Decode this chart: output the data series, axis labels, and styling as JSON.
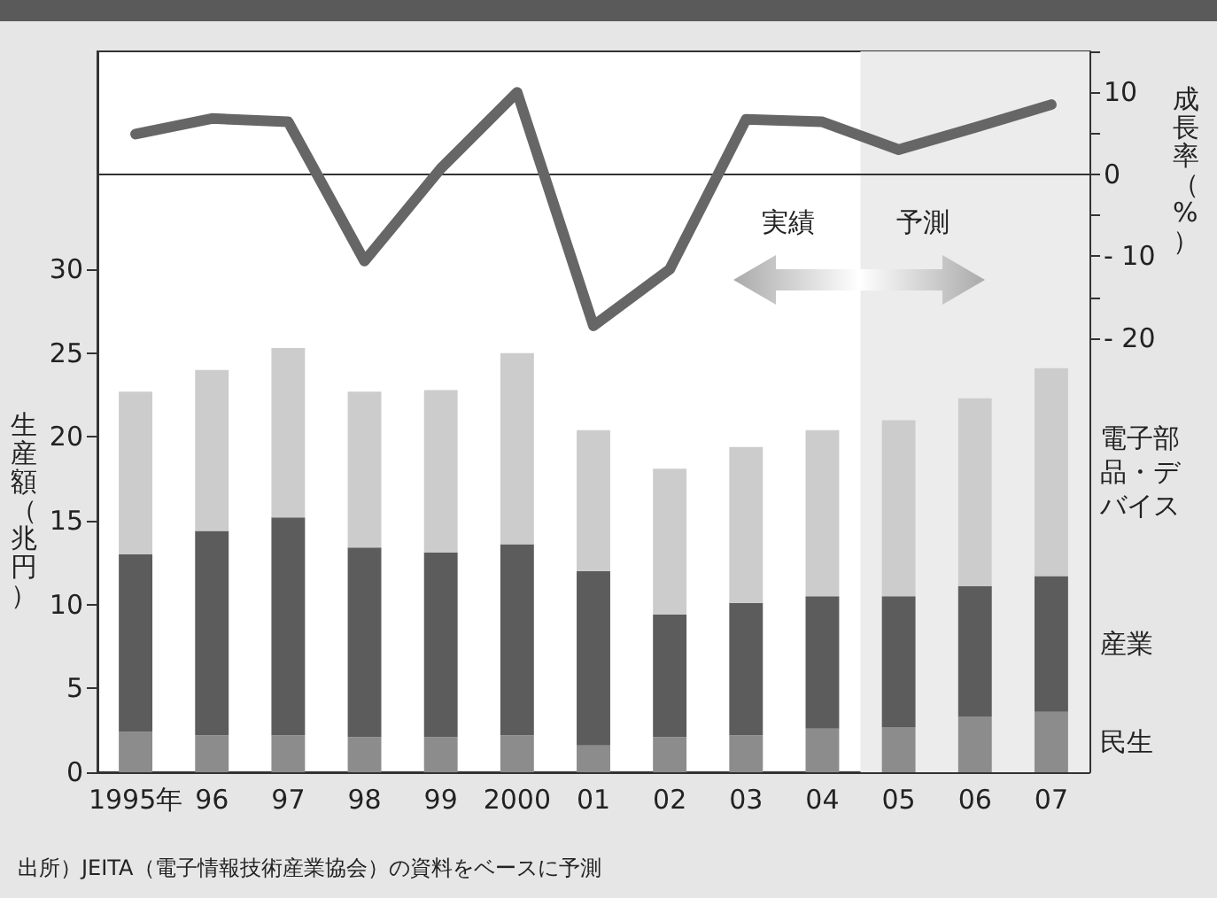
{
  "chart_data": {
    "type": "bar",
    "stacked": true,
    "categories": [
      "1995年",
      "96",
      "97",
      "98",
      "99",
      "2000",
      "01",
      "02",
      "03",
      "04",
      "05",
      "06",
      "07"
    ],
    "series": [
      {
        "name": "民生",
        "color": "#8c8c8c",
        "values": [
          2.4,
          2.2,
          2.2,
          2.1,
          2.1,
          2.2,
          1.6,
          2.1,
          2.2,
          2.6,
          2.7,
          3.3,
          3.6
        ]
      },
      {
        "name": "産業",
        "color": "#5c5c5c",
        "values": [
          10.6,
          12.2,
          13.0,
          11.3,
          11.0,
          11.4,
          10.4,
          7.3,
          7.9,
          7.9,
          7.8,
          7.8,
          8.1
        ]
      },
      {
        "name": "電子部品・デバイス",
        "color": "#cccccc",
        "values": [
          9.7,
          9.6,
          10.1,
          9.3,
          9.7,
          11.4,
          8.4,
          8.7,
          9.3,
          9.9,
          10.5,
          11.2,
          12.4
        ]
      },
      {
        "type": "line",
        "axis": "y2",
        "color": "#666666",
        "values": [
          4.9,
          6.8,
          6.4,
          -10.6,
          0.7,
          10.0,
          -18.5,
          -11.6,
          6.7,
          6.4,
          3.0,
          5.7,
          8.5
        ]
      }
    ],
    "ylabel": "生産額（兆円）",
    "y2label": "成長率（%）",
    "ylim": [
      0,
      43
    ],
    "yticks": [
      0,
      5,
      10,
      15,
      20,
      25,
      30
    ],
    "y2lim": [
      -73,
      15
    ],
    "y2ticks": [
      {
        "value": 15,
        "label": null
      },
      10,
      {
        "value": 5,
        "label": null
      },
      0,
      {
        "value": -5,
        "label": null
      },
      {
        "value": -10,
        "label": "- 10"
      },
      {
        "value": -15,
        "label": null
      },
      {
        "value": -20,
        "label": "- 20"
      }
    ],
    "ref_lines": [
      {
        "axis": "y2",
        "value": 0,
        "color": "#333333"
      }
    ],
    "bands": [
      {
        "axis": "x",
        "from": "05",
        "to": "07",
        "color": "#ececec"
      }
    ],
    "annotations": [
      "実績",
      "予測",
      "出所）JEITA（電子情報技術産業協会）の資料をベースに予測"
    ],
    "legend": false,
    "grid": false,
    "marker": "none",
    "line_style": "solid"
  }
}
